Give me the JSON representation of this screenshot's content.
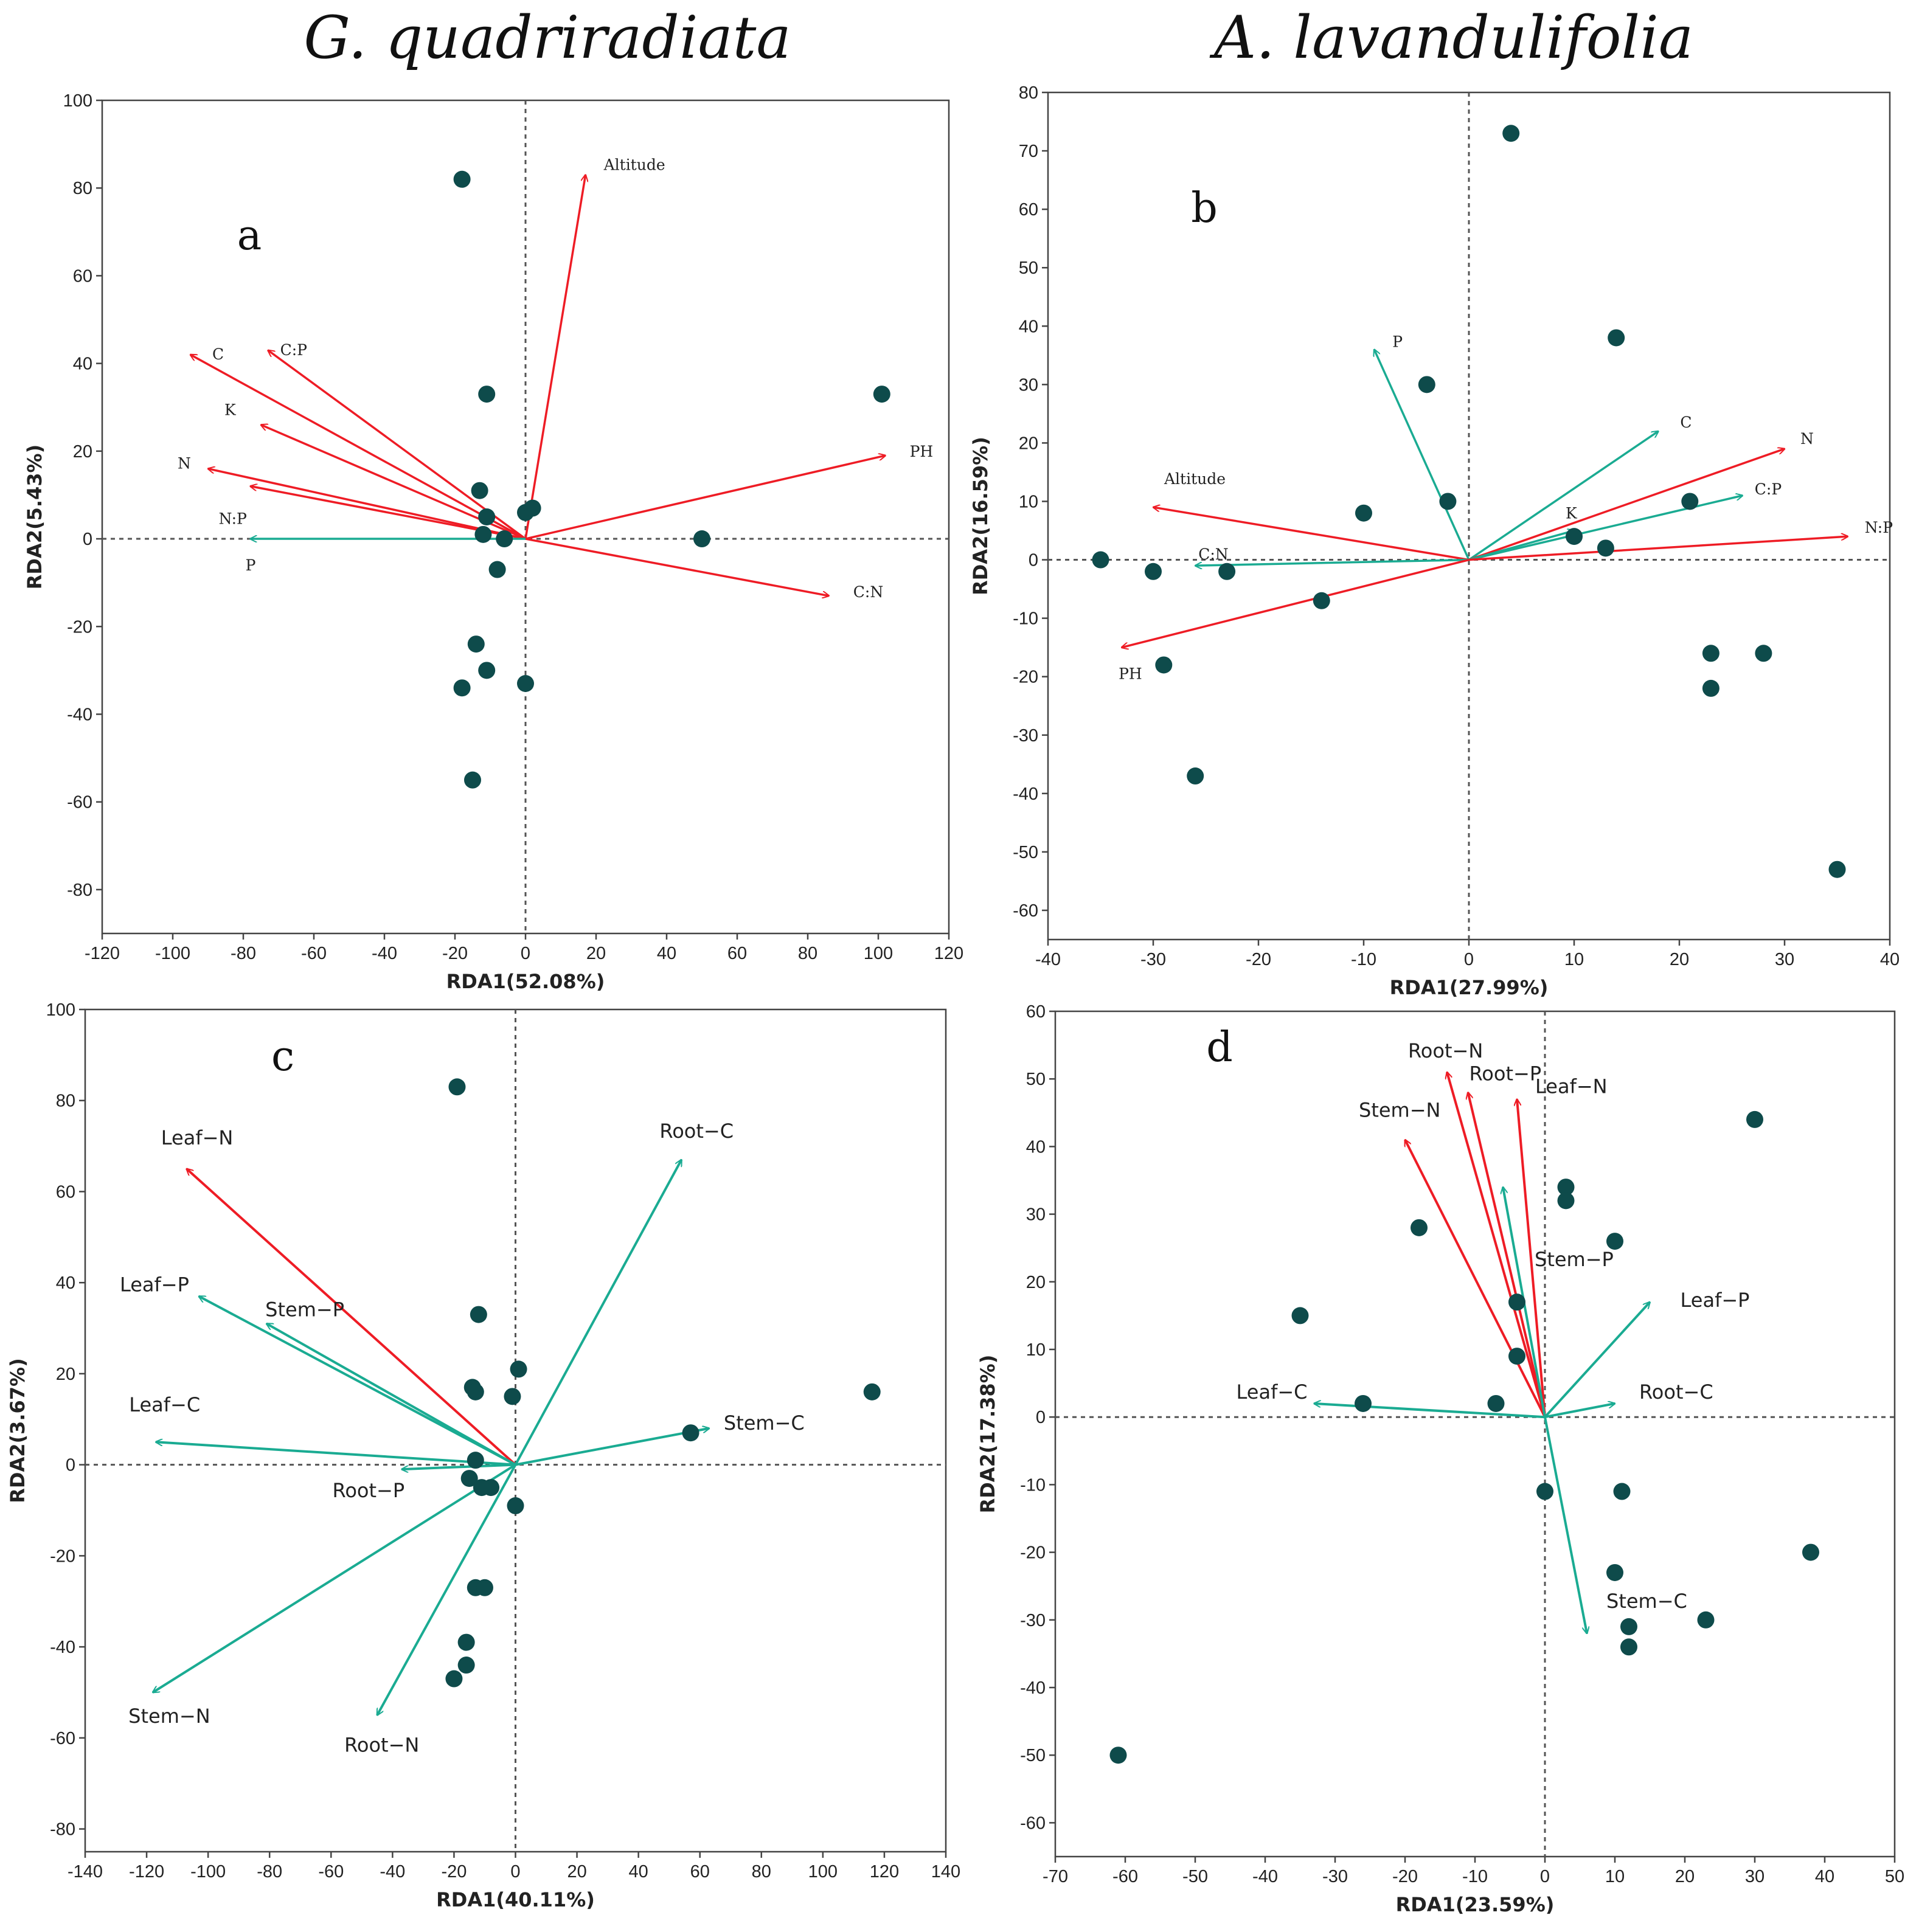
{
  "species_titles": [
    "G. quadriradiata",
    "A. lavandulifolia"
  ],
  "colors": {
    "red": "#ee1c25",
    "teal": "#1aab92",
    "point": "#0e4b4b"
  },
  "chart_data": [
    {
      "type": "scatter",
      "panel": "a",
      "xlabel": "RDA1(52.08%)",
      "ylabel": "RDA2(5.43%)",
      "xlim": [
        -120,
        120
      ],
      "ylim": [
        -90,
        100
      ],
      "xticks": [
        -120,
        -100,
        -80,
        -60,
        -40,
        -20,
        0,
        20,
        40,
        60,
        80,
        100,
        120
      ],
      "yticks": [
        -80,
        -60,
        -40,
        -20,
        0,
        20,
        40,
        60,
        80,
        100
      ],
      "points": [
        [
          -18,
          82
        ],
        [
          -11,
          33
        ],
        [
          -13,
          11
        ],
        [
          -11,
          5
        ],
        [
          -12,
          1
        ],
        [
          -6,
          0
        ],
        [
          -8,
          -7
        ],
        [
          0,
          6
        ],
        [
          2,
          7
        ],
        [
          50,
          0
        ],
        [
          101,
          33
        ],
        [
          -14,
          -24
        ],
        [
          -11,
          -30
        ],
        [
          -18,
          -34
        ],
        [
          0,
          -33
        ],
        [
          -15,
          -55
        ]
      ],
      "vectors": [
        {
          "label": "Altitude",
          "x": 17,
          "y": 83,
          "color": "red"
        },
        {
          "label": "C",
          "x": -95,
          "y": 42,
          "color": "red"
        },
        {
          "label": "C:P",
          "x": -73,
          "y": 43,
          "color": "red"
        },
        {
          "label": "K",
          "x": -75,
          "y": 26,
          "color": "red"
        },
        {
          "label": "N",
          "x": -90,
          "y": 16,
          "color": "red"
        },
        {
          "label": "N:P",
          "x": -78,
          "y": 12,
          "color": "red"
        },
        {
          "label": "PH",
          "x": 102,
          "y": 19,
          "color": "red"
        },
        {
          "label": "C:N",
          "x": 86,
          "y": -13,
          "color": "red"
        },
        {
          "label": "P",
          "x": -78,
          "y": 0,
          "color": "teal"
        }
      ]
    },
    {
      "type": "scatter",
      "panel": "b",
      "xlabel": "RDA1(27.99%)",
      "ylabel": "RDA2(16.59%)",
      "xlim": [
        -40,
        40
      ],
      "ylim": [
        -65,
        80
      ],
      "xticks": [
        -40,
        -30,
        -20,
        -10,
        0,
        10,
        20,
        30,
        40
      ],
      "yticks": [
        -60,
        -50,
        -40,
        -30,
        -20,
        -10,
        0,
        10,
        20,
        30,
        40,
        50,
        60,
        70,
        80
      ],
      "points": [
        [
          4,
          73
        ],
        [
          14,
          38
        ],
        [
          -4,
          30
        ],
        [
          -2,
          10
        ],
        [
          -10,
          8
        ],
        [
          21,
          10
        ],
        [
          10,
          4
        ],
        [
          13,
          2
        ],
        [
          -35,
          0
        ],
        [
          -30,
          -2
        ],
        [
          -23,
          -2
        ],
        [
          -14,
          -7
        ],
        [
          -29,
          -18
        ],
        [
          -26,
          -37
        ],
        [
          23,
          -16
        ],
        [
          28,
          -16
        ],
        [
          23,
          -22
        ],
        [
          35,
          -53
        ]
      ],
      "vectors": [
        {
          "label": "P",
          "x": -9,
          "y": 36,
          "color": "teal"
        },
        {
          "label": "C",
          "x": 18,
          "y": 22,
          "color": "teal"
        },
        {
          "label": "N",
          "x": 30,
          "y": 19,
          "color": "red"
        },
        {
          "label": "C:P",
          "x": 26,
          "y": 11,
          "color": "teal"
        },
        {
          "label": "K",
          "x": 10,
          "y": 5,
          "color": "teal"
        },
        {
          "label": "N:P",
          "x": 36,
          "y": 4,
          "color": "red"
        },
        {
          "label": "Altitude",
          "x": -30,
          "y": 9,
          "color": "red"
        },
        {
          "label": "C:N",
          "x": -26,
          "y": -1,
          "color": "teal"
        },
        {
          "label": "PH",
          "x": -33,
          "y": -15,
          "color": "red"
        }
      ]
    },
    {
      "type": "scatter",
      "panel": "c",
      "xlabel": "RDA1(40.11%)",
      "ylabel": "RDA2(3.67%)",
      "xlim": [
        -140,
        140
      ],
      "ylim": [
        -85,
        100
      ],
      "xticks": [
        -140,
        -120,
        -100,
        -80,
        -60,
        -40,
        -20,
        0,
        20,
        40,
        60,
        80,
        100,
        120,
        140
      ],
      "yticks": [
        -80,
        -60,
        -40,
        -20,
        0,
        20,
        40,
        60,
        80,
        100
      ],
      "points": [
        [
          -19,
          83
        ],
        [
          -12,
          33
        ],
        [
          -14,
          17
        ],
        [
          -13,
          16
        ],
        [
          -1,
          15
        ],
        [
          1,
          21
        ],
        [
          57,
          7
        ],
        [
          116,
          16
        ],
        [
          -13,
          1
        ],
        [
          -15,
          -3
        ],
        [
          -11,
          -5
        ],
        [
          -8,
          -5
        ],
        [
          0,
          -9
        ],
        [
          -13,
          -27
        ],
        [
          -10,
          -27
        ],
        [
          -16,
          -39
        ],
        [
          -16,
          -44
        ],
        [
          -20,
          -47
        ]
      ],
      "vectors": [
        {
          "label": "Leaf−N",
          "x": -107,
          "y": 65,
          "color": "red"
        },
        {
          "label": "Root−C",
          "x": 54,
          "y": 67,
          "color": "teal"
        },
        {
          "label": "Leaf−P",
          "x": -103,
          "y": 37,
          "color": "teal"
        },
        {
          "label": "Stem−P",
          "x": -81,
          "y": 31,
          "color": "teal"
        },
        {
          "label": "Leaf−C",
          "x": -117,
          "y": 5,
          "color": "teal"
        },
        {
          "label": "Stem−C",
          "x": 63,
          "y": 8,
          "color": "teal"
        },
        {
          "label": "Root−P",
          "x": -37,
          "y": -1,
          "color": "teal"
        },
        {
          "label": "Stem−N",
          "x": -118,
          "y": -50,
          "color": "teal"
        },
        {
          "label": "Root−N",
          "x": -45,
          "y": -55,
          "color": "teal"
        }
      ]
    },
    {
      "type": "scatter",
      "panel": "d",
      "xlabel": "RDA1(23.59%)",
      "ylabel": "RDA2(17.38%)",
      "xlim": [
        -70,
        50
      ],
      "ylim": [
        -65,
        60
      ],
      "xticks": [
        -70,
        -60,
        -50,
        -40,
        -30,
        -20,
        -10,
        0,
        10,
        20,
        30,
        40,
        50
      ],
      "yticks": [
        -60,
        -50,
        -40,
        -30,
        -20,
        -10,
        0,
        10,
        20,
        30,
        40,
        50,
        60
      ],
      "points": [
        [
          30,
          44
        ],
        [
          3,
          34
        ],
        [
          3,
          32
        ],
        [
          -18,
          28
        ],
        [
          10,
          26
        ],
        [
          -4,
          17
        ],
        [
          -35,
          15
        ],
        [
          -4,
          9
        ],
        [
          -26,
          2
        ],
        [
          -7,
          2
        ],
        [
          0,
          -11
        ],
        [
          11,
          -11
        ],
        [
          10,
          -23
        ],
        [
          38,
          -20
        ],
        [
          23,
          -30
        ],
        [
          12,
          -31
        ],
        [
          12,
          -34
        ],
        [
          -61,
          -50
        ]
      ],
      "vectors": [
        {
          "label": "Root−N",
          "x": -14,
          "y": 51,
          "color": "red"
        },
        {
          "label": "Root−P",
          "x": -11,
          "y": 48,
          "color": "red"
        },
        {
          "label": "Leaf−N",
          "x": -4,
          "y": 47,
          "color": "red"
        },
        {
          "label": "Stem−N",
          "x": -20,
          "y": 41,
          "color": "red"
        },
        {
          "label": "Stem−P",
          "x": -6,
          "y": 34,
          "color": "teal"
        },
        {
          "label": "Leaf−P",
          "x": 15,
          "y": 17,
          "color": "teal"
        },
        {
          "label": "Leaf−C",
          "x": -33,
          "y": 2,
          "color": "teal"
        },
        {
          "label": "Root−C",
          "x": 10,
          "y": 2,
          "color": "teal"
        },
        {
          "label": "Stem−C",
          "x": 6,
          "y": -32,
          "color": "teal"
        }
      ]
    }
  ]
}
